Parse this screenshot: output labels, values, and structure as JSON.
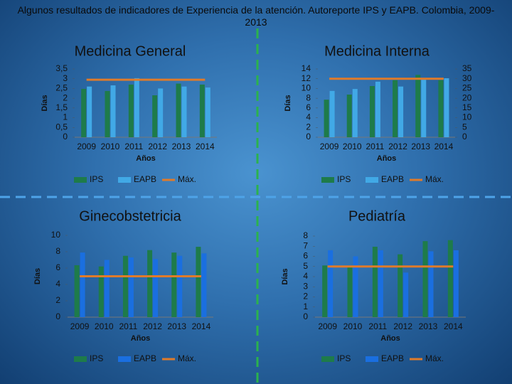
{
  "title": "Algunos resultados de indicadores de Experiencia de la atención. Autoreporte IPS y EAPB. Colombia, 2009-2013",
  "chart_data": [
    {
      "type": "bar",
      "title": "Medicina General",
      "ylabel": "Días",
      "xlabel": "Años",
      "categories": [
        "2009",
        "2010",
        "2011",
        "2012",
        "2013",
        "2014"
      ],
      "ylim": [
        0,
        3.5
      ],
      "yticks": [
        0,
        {
          "value": 0.5,
          "label": "0,5"
        },
        1,
        {
          "value": 1.5,
          "label": "1,5"
        },
        2,
        {
          "value": 2.5,
          "label": "2,5"
        },
        3,
        {
          "value": 3.5,
          "label": "3,5"
        }
      ],
      "series": [
        {
          "name": "IPS",
          "type": "bar",
          "color": "#1e7b4a",
          "values": [
            2.48,
            2.37,
            2.7,
            2.15,
            2.75,
            2.7
          ]
        },
        {
          "name": "EAPB",
          "type": "bar",
          "color": "#41a9e6",
          "values": [
            2.6,
            2.66,
            3.03,
            2.5,
            2.6,
            2.55
          ]
        },
        {
          "name": "Máx.",
          "type": "line",
          "color": "#e07b2a",
          "values": [
            2.95,
            2.95,
            2.95,
            2.95,
            2.95,
            2.95
          ]
        }
      ]
    },
    {
      "type": "bar",
      "title": "Medicina Interna",
      "ylabel": "Días",
      "xlabel": "Años",
      "categories": [
        "2009",
        "2010",
        "2011",
        "2012",
        "2013",
        "2014"
      ],
      "ylim": [
        0,
        14
      ],
      "yticks": [
        0,
        2,
        4,
        6,
        8,
        10,
        12,
        14
      ],
      "y2lim": [
        0,
        35
      ],
      "y2ticks": [
        0,
        5,
        10,
        15,
        20,
        25,
        30,
        35
      ],
      "series": [
        {
          "name": "IPS",
          "type": "bar",
          "color": "#1e7b4a",
          "values": [
            7.7,
            8.75,
            10.5,
            11.7,
            12.8,
            11.7
          ]
        },
        {
          "name": "EAPB",
          "type": "bar",
          "color": "#41a9e6",
          "values": [
            9.5,
            9.9,
            11.4,
            10.4,
            11.8,
            12.1
          ]
        },
        {
          "name": "Máx.",
          "type": "line",
          "axis": "y2",
          "color": "#e07b2a",
          "values": [
            30,
            30,
            30,
            30,
            30,
            30
          ]
        }
      ]
    },
    {
      "type": "bar",
      "title": "Ginecobstetricia",
      "ylabel": "Días",
      "xlabel": "Años",
      "categories": [
        "2009",
        "2010",
        "2011",
        "2012",
        "2013",
        "2014"
      ],
      "ylim": [
        0,
        10
      ],
      "yticks": [
        0,
        2,
        4,
        6,
        8,
        10
      ],
      "series": [
        {
          "name": "IPS",
          "type": "bar",
          "color": "#1e7b4a",
          "values": [
            6.35,
            6.2,
            7.5,
            8.2,
            7.9,
            8.6
          ]
        },
        {
          "name": "EAPB",
          "type": "bar",
          "color": "#1a6fe0",
          "values": [
            7.9,
            7.0,
            7.3,
            7.1,
            7.5,
            7.8
          ]
        },
        {
          "name": "Máx.",
          "type": "line",
          "color": "#e07b2a",
          "values": [
            5,
            5,
            5,
            5,
            5,
            5
          ]
        }
      ]
    },
    {
      "type": "bar",
      "title": "Pediatría",
      "ylabel": "Días",
      "xlabel": "Años",
      "categories": [
        "2009",
        "2010",
        "2011",
        "2012",
        "2013",
        "2014"
      ],
      "ylim": [
        0,
        8
      ],
      "yticks": [
        0,
        1,
        2,
        3,
        4,
        5,
        6,
        7,
        8
      ],
      "series": [
        {
          "name": "IPS",
          "type": "bar",
          "color": "#1e7b4a",
          "values": [
            5.1,
            5.05,
            6.95,
            6.2,
            7.5,
            7.6
          ]
        },
        {
          "name": "EAPB",
          "type": "bar",
          "color": "#1a6fe0",
          "values": [
            6.6,
            6.0,
            6.6,
            4.4,
            6.5,
            6.6
          ]
        },
        {
          "name": "Máx.",
          "type": "line",
          "color": "#e07b2a",
          "values": [
            5,
            5,
            5,
            5,
            5,
            5
          ]
        }
      ]
    }
  ]
}
